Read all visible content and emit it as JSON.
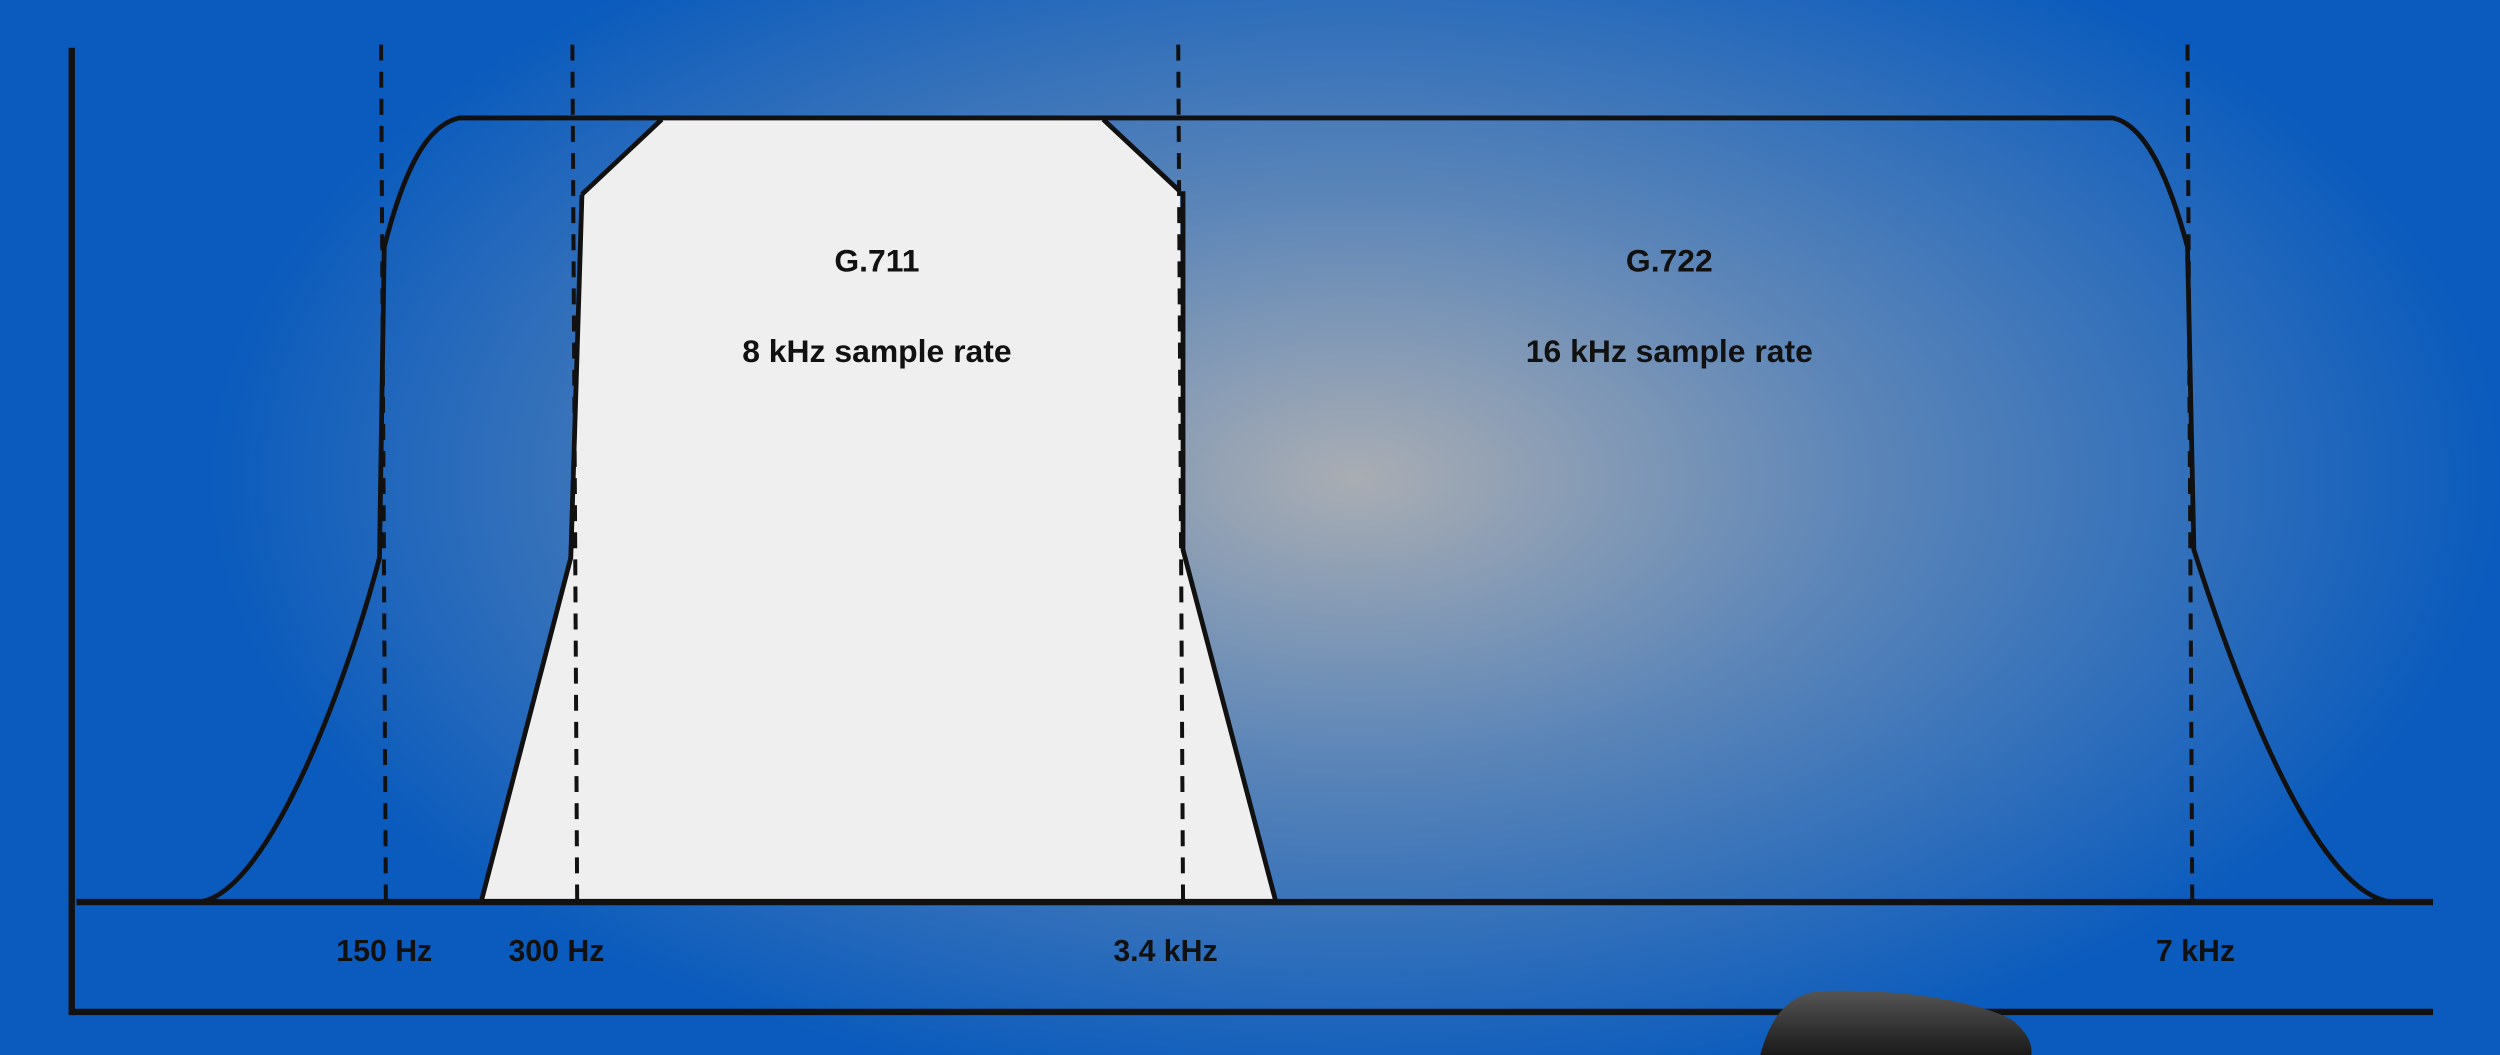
{
  "codecs": [
    {
      "name": "G.711",
      "rate": "8 kHz sample rate"
    },
    {
      "name": "G.722",
      "rate": "16 kHz sample rate"
    }
  ],
  "frequency_markers": [
    "150 Hz",
    "300 Hz",
    "3.4 kHz",
    "7 kHz"
  ]
}
